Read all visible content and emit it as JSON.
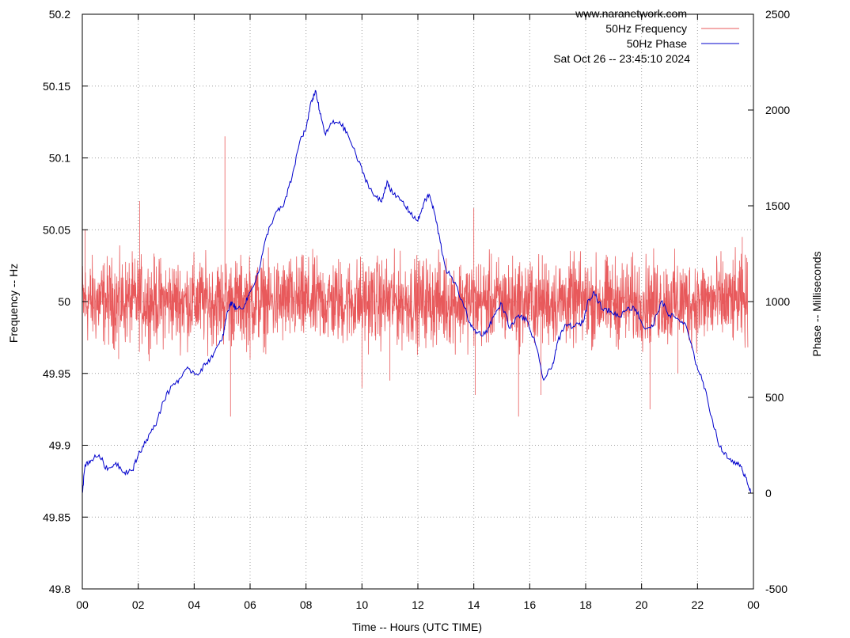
{
  "chart_data": {
    "type": "line",
    "watermark": "www.naranetwork.com",
    "timestamp": "Sat Oct 26 -- 23:45:10 2024",
    "xlabel": "Time -- Hours (UTC TIME)",
    "ylabel_left": "Frequency -- Hz",
    "ylabel_right": "Phase -- Milliseconds",
    "xlim": [
      0,
      24
    ],
    "ylim_left": [
      49.8,
      50.2
    ],
    "ylim_right": [
      -500,
      2500
    ],
    "grid": true,
    "legend_position": "top-right",
    "x_ticks": [
      "00",
      "02",
      "04",
      "06",
      "08",
      "10",
      "12",
      "14",
      "16",
      "18",
      "20",
      "22",
      "00"
    ],
    "y_left_ticks": [
      "49.8",
      "49.85",
      "49.9",
      "49.95",
      "50",
      "50.05",
      "50.1",
      "50.15",
      "50.2"
    ],
    "y_right_ticks": [
      "-500",
      "0",
      "500",
      "1000",
      "1500",
      "2000",
      "2500"
    ],
    "series": [
      {
        "name": "50Hz Frequency",
        "axis": "left",
        "color": "#e8595b",
        "note_band": [
          49.965,
          50.035
        ],
        "spikes": [
          [
            0.1,
            50.05
          ],
          [
            1.3,
            49.96
          ],
          [
            2.05,
            50.07
          ],
          [
            5.1,
            50.115
          ],
          [
            5.3,
            49.92
          ],
          [
            6.0,
            49.96
          ],
          [
            10.0,
            49.94
          ],
          [
            11.0,
            49.945
          ],
          [
            12.3,
            50.03
          ],
          [
            14.0,
            50.065
          ],
          [
            14.05,
            49.935
          ],
          [
            15.6,
            49.92
          ],
          [
            16.4,
            49.935
          ],
          [
            20.3,
            49.925
          ],
          [
            21.3,
            49.95
          ],
          [
            23.6,
            50.045
          ]
        ]
      },
      {
        "name": "50Hz Phase",
        "axis": "right",
        "color": "#0000cc",
        "x": [
          0.0,
          0.1,
          0.3,
          0.6,
          0.9,
          1.2,
          1.5,
          1.8,
          2.0,
          2.3,
          2.6,
          2.9,
          3.2,
          3.5,
          3.8,
          4.1,
          4.4,
          4.7,
          5.0,
          5.2,
          5.35,
          5.5,
          5.8,
          6.0,
          6.3,
          6.6,
          6.9,
          7.2,
          7.5,
          7.8,
          8.0,
          8.2,
          8.35,
          8.5,
          8.7,
          8.9,
          9.2,
          9.5,
          9.8,
          10.1,
          10.4,
          10.7,
          10.9,
          11.1,
          11.4,
          11.7,
          12.0,
          12.2,
          12.4,
          12.6,
          12.8,
          13.0,
          13.3,
          13.6,
          13.9,
          14.1,
          14.4,
          14.7,
          15.0,
          15.3,
          15.6,
          15.9,
          16.2,
          16.5,
          16.8,
          17.0,
          17.3,
          17.6,
          17.9,
          18.1,
          18.3,
          18.6,
          18.9,
          19.2,
          19.5,
          19.8,
          20.1,
          20.4,
          20.7,
          21.0,
          21.3,
          21.6,
          21.9,
          22.2,
          22.5,
          22.8,
          23.1,
          23.4,
          23.6,
          23.75,
          23.9
        ],
        "y": [
          0,
          150,
          170,
          200,
          120,
          160,
          110,
          120,
          200,
          280,
          350,
          480,
          560,
          600,
          650,
          620,
          670,
          730,
          800,
          950,
          1000,
          960,
          980,
          1050,
          1150,
          1350,
          1460,
          1500,
          1650,
          1850,
          1900,
          2050,
          2100,
          1980,
          1870,
          1930,
          1940,
          1870,
          1760,
          1650,
          1560,
          1520,
          1630,
          1560,
          1530,
          1470,
          1420,
          1510,
          1560,
          1460,
          1310,
          1170,
          1100,
          1000,
          870,
          840,
          830,
          920,
          990,
          860,
          930,
          900,
          780,
          590,
          660,
          790,
          880,
          870,
          890,
          1010,
          1050,
          960,
          950,
          920,
          970,
          960,
          860,
          870,
          1000,
          930,
          910,
          870,
          700,
          580,
          400,
          240,
          180,
          160,
          120,
          80,
          0
        ]
      }
    ]
  }
}
